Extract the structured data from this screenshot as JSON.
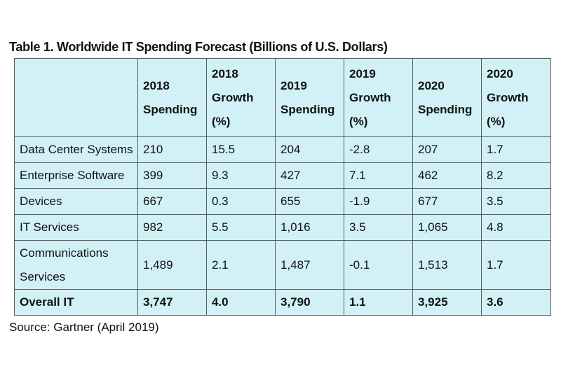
{
  "title": "Table 1. Worldwide IT Spending Forecast (Billions of U.S. Dollars)",
  "columns": [
    {
      "line1": "2018",
      "line2": "Spending",
      "line3": ""
    },
    {
      "line1": "2018",
      "line2": "Growth",
      "line3": "(%)"
    },
    {
      "line1": "2019",
      "line2": "Spending",
      "line3": ""
    },
    {
      "line1": "2019",
      "line2": "Growth",
      "line3": "(%)"
    },
    {
      "line1": "2020",
      "line2": "Spending",
      "line3": ""
    },
    {
      "line1": "2020",
      "line2": "Growth",
      "line3": "(%)"
    }
  ],
  "rows": [
    {
      "label": "Data Center Systems",
      "values": [
        "210",
        "15.5",
        "204",
        "-2.8",
        "207",
        "1.7"
      ]
    },
    {
      "label": "Enterprise Software",
      "values": [
        "399",
        "9.3",
        "427",
        "7.1",
        "462",
        "8.2"
      ]
    },
    {
      "label": "Devices",
      "values": [
        "667",
        "0.3",
        "655",
        "-1.9",
        "677",
        "3.5"
      ]
    },
    {
      "label": "IT Services",
      "values": [
        "982",
        "5.5",
        "1,016",
        "3.5",
        "1,065",
        "4.8"
      ]
    },
    {
      "label_line1": "Communications",
      "label_line2": "Services",
      "values": [
        "1,489",
        "2.1",
        "1,487",
        "-0.1",
        "1,513",
        "1.7"
      ]
    }
  ],
  "total": {
    "label": "Overall IT",
    "values": [
      "3,747",
      "4.0",
      "3,790",
      "1.1",
      "3,925",
      "3.6"
    ]
  },
  "source": "Source: Gartner (April 2019)",
  "colors": {
    "table_background": "#d2f1f7",
    "border": "#5a5a5a"
  }
}
